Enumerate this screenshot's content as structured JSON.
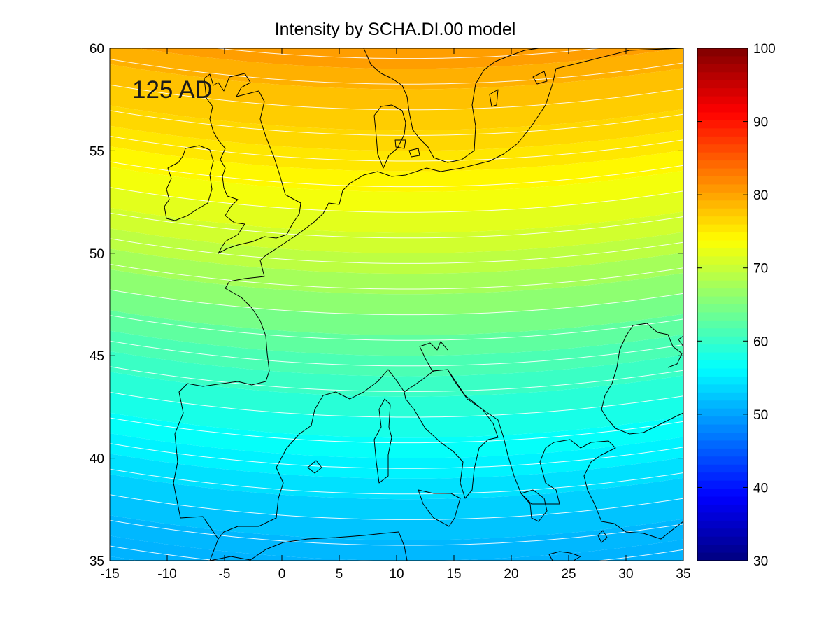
{
  "title": "Intensity by SCHA.DI.00 model",
  "era_label": "125 AD",
  "map": {
    "type": "heatmap",
    "x_ticks": [
      "-15",
      "-10",
      "-5",
      "0",
      "5",
      "10",
      "15",
      "20",
      "25",
      "30",
      "35"
    ],
    "y_ticks": [
      "60",
      "55",
      "50",
      "45",
      "40",
      "35"
    ],
    "xlim": [
      -15,
      35
    ],
    "ylim": [
      35,
      60
    ],
    "colormap": "jet",
    "contour_color": "#ffffff",
    "coastline_color": "#000000"
  },
  "colorbar": {
    "ticks": [
      "100",
      "90",
      "80",
      "70",
      "60",
      "50",
      "40",
      "30"
    ],
    "range": [
      30,
      100
    ]
  },
  "chart_data": {
    "type": "heatmap",
    "title": "Intensity by SCHA.DI.00 model",
    "annotation": "125 AD",
    "xlim": [
      -15,
      35
    ],
    "ylim": [
      35,
      60
    ],
    "color_range": [
      30,
      100
    ],
    "colorbar_ticks": [
      30,
      40,
      50,
      60,
      70,
      80,
      90,
      100
    ],
    "intensity_by_latitude_at_10E": [
      {
        "lat": 60,
        "value": 81
      },
      {
        "lat": 57.5,
        "value": 78
      },
      {
        "lat": 55,
        "value": 76
      },
      {
        "lat": 52.5,
        "value": 73
      },
      {
        "lat": 50,
        "value": 70
      },
      {
        "lat": 47.5,
        "value": 66
      },
      {
        "lat": 45,
        "value": 62
      },
      {
        "lat": 42.5,
        "value": 59
      },
      {
        "lat": 40,
        "value": 56
      },
      {
        "lat": 37.5,
        "value": 53
      },
      {
        "lat": 35,
        "value": 51
      }
    ]
  }
}
